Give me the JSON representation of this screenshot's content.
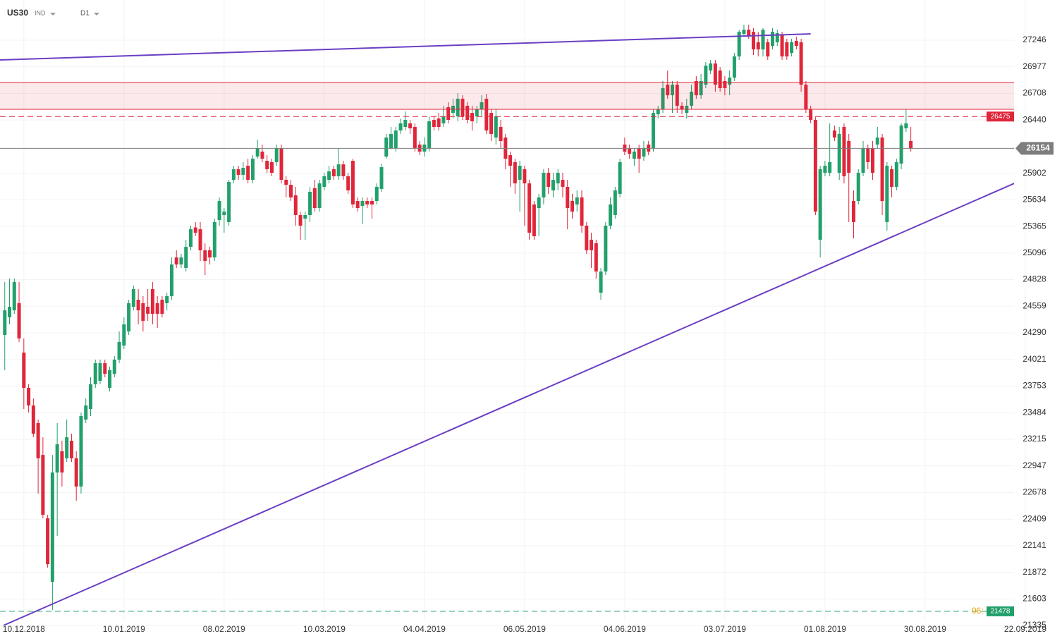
{
  "chart_data": {
    "type": "candlestick",
    "symbol": "US30",
    "market": "IND",
    "timeframe": "D1",
    "up_color": "#22a06b",
    "down_color": "#e0263a",
    "grid": true,
    "xlim": [
      -1,
      221.7
    ],
    "ylim": [
      21335,
      27652
    ],
    "yticks": [
      27246,
      26977,
      26708,
      26440,
      25902,
      25634,
      25365,
      25096,
      24828,
      24559,
      24290,
      24021,
      23753,
      23484,
      23215,
      22947,
      22678,
      22409,
      22141,
      21872,
      21603,
      21335
    ],
    "xticks": [
      {
        "value": 4,
        "label": "10.12.2018"
      },
      {
        "value": 25,
        "label": "10.01.2019"
      },
      {
        "value": 46,
        "label": "08.02.2019"
      },
      {
        "value": 67,
        "label": "10.03.2019"
      },
      {
        "value": 88,
        "label": "04.04.2019"
      },
      {
        "value": 109,
        "label": "06.05.2019"
      },
      {
        "value": 130,
        "label": "04.06.2019"
      },
      {
        "value": 151,
        "label": "03.07.2019"
      },
      {
        "value": 172,
        "label": "01.08.2019"
      },
      {
        "value": 193,
        "label": "30.08.2019"
      },
      {
        "value": 214,
        "label": "22.09.2019"
      }
    ],
    "open": [
      24269,
      24447,
      24518,
      24590,
      24091,
      23735,
      23557,
      23379,
      23058,
      22417,
      21776,
      22880,
      23094,
      23023,
      23201,
      23023,
      22738,
      23415,
      23521,
      23771,
      23806,
      23984,
      23735,
      23877,
      24020,
      24162,
      24305,
      24554,
      24625,
      24590,
      24554,
      24732,
      24590,
      24625,
      24590,
      24661,
      25052,
      24981,
      24946,
      25159,
      25355,
      25337,
      25124,
      25124,
      25052,
      25430,
      25480,
      25409,
      25836,
      25943,
      25886,
      25978,
      25836,
      26071,
      26121,
      26028,
      26014,
      26014,
      26156,
      25836,
      25786,
      25679,
      25480,
      25444,
      25480,
      25751,
      25551,
      25765,
      25836,
      25943,
      25872,
      25992,
      25872,
      26028,
      25622,
      25572,
      25622,
      25622,
      25622,
      25744,
      26071,
      26156,
      26156,
      26334,
      26370,
      26406,
      26370,
      26192,
      26121,
      26156,
      26441,
      26455,
      26406,
      26569,
      26512,
      26477,
      26655,
      26584,
      26512,
      26477,
      26548,
      26655,
      26512,
      26263,
      26370,
      26263,
      26085,
      26014,
      25836,
      25943,
      25800,
      25587,
      25551,
      25658,
      25907,
      25729,
      25800,
      25836,
      25765,
      25622,
      25587,
      25658,
      25373,
      25231,
      25195,
      24696,
      24910,
      25373,
      25480,
      25694,
      26192,
      26156,
      26049,
      26156,
      26071,
      26192,
      26156,
      26498,
      26548,
      26797,
      26690,
      26797,
      26584,
      26512,
      26584,
      26833,
      26690,
      26797,
      26940,
      27011,
      26940,
      26833,
      26797,
      26868,
      27082,
      27310,
      27352,
      27331,
      27225,
      27153,
      27225,
      27189,
      27225,
      27296,
      27225,
      27118,
      27239,
      27225,
      26797,
      26548,
      26441,
      25231,
      25907,
      25907,
      26334,
      25907,
      26370,
      26228,
      25622,
      25622,
      25907,
      26156,
      26156,
      26192,
      26263,
      25409,
      25943,
      25765,
      26000,
      26356,
      26228
    ],
    "high": [
      24803,
      24839,
      24839,
      24803,
      24234,
      23771,
      23628,
      23415,
      23236,
      22453,
      23058,
      23379,
      23201,
      23415,
      23272,
      23094,
      23486,
      23628,
      23842,
      24020,
      24020,
      24020,
      23949,
      24056,
      24305,
      24447,
      24625,
      24768,
      24732,
      24661,
      24732,
      24803,
      24661,
      24661,
      24696,
      25052,
      25124,
      25088,
      25231,
      25373,
      25409,
      25409,
      25195,
      25159,
      25444,
      25658,
      25551,
      25836,
      25978,
      25978,
      26014,
      26049,
      26085,
      26242,
      26192,
      26085,
      26049,
      26192,
      26192,
      25872,
      25836,
      25765,
      25515,
      25515,
      25765,
      25836,
      25836,
      25907,
      25978,
      25978,
      26156,
      26028,
      25907,
      26049,
      25658,
      25658,
      25658,
      25658,
      25800,
      26000,
      26299,
      26370,
      26370,
      26455,
      26526,
      26441,
      26406,
      26228,
      26263,
      26477,
      26477,
      26512,
      26584,
      26619,
      26655,
      26712,
      26690,
      26619,
      26584,
      26584,
      26690,
      26705,
      26548,
      26548,
      26441,
      26299,
      26121,
      26049,
      26028,
      25978,
      25836,
      25622,
      25694,
      25943,
      25957,
      25907,
      25943,
      25907,
      25836,
      25694,
      25729,
      25729,
      25409,
      25302,
      25231,
      24946,
      25409,
      25658,
      25765,
      26049,
      26263,
      26192,
      26156,
      26192,
      26228,
      26228,
      26548,
      26584,
      26833,
      26940,
      26833,
      26833,
      26619,
      26655,
      26797,
      26883,
      26904,
      27025,
      27047,
      27047,
      26975,
      26883,
      26940,
      27118,
      27352,
      27403,
      27403,
      27367,
      27331,
      27367,
      27260,
      27367,
      27352,
      27331,
      27260,
      27260,
      27282,
      27260,
      26833,
      26584,
      26477,
      25978,
      26028,
      26406,
      26384,
      26370,
      26406,
      26299,
      25729,
      25943,
      26228,
      26192,
      26228,
      26370,
      26299,
      26014,
      25978,
      26049,
      26406,
      26548,
      26370
    ],
    "low": [
      23913,
      24376,
      24483,
      24198,
      23521,
      23486,
      23236,
      22667,
      22417,
      21919,
      21491,
      22239,
      22738,
      22987,
      22987,
      22595,
      22667,
      23379,
      23450,
      23735,
      23771,
      23842,
      23699,
      23842,
      23984,
      24127,
      24269,
      24518,
      24376,
      24305,
      24412,
      24376,
      24340,
      24447,
      24518,
      24625,
      24946,
      24946,
      24910,
      25124,
      25266,
      25017,
      24874,
      24981,
      25017,
      25373,
      25302,
      25373,
      25800,
      25836,
      25836,
      25800,
      25800,
      26049,
      26014,
      25907,
      25872,
      25978,
      25800,
      25658,
      25622,
      25373,
      25231,
      25231,
      25409,
      25515,
      25515,
      25729,
      25800,
      25836,
      25836,
      25836,
      25694,
      25551,
      25515,
      25387,
      25551,
      25444,
      25587,
      25715,
      26049,
      26142,
      26121,
      26299,
      26334,
      26299,
      26121,
      26085,
      26071,
      26121,
      26334,
      26334,
      26370,
      26406,
      26455,
      26427,
      26441,
      26406,
      26334,
      26406,
      26477,
      26299,
      26228,
      26192,
      26156,
      25943,
      25765,
      25694,
      25515,
      25373,
      25231,
      25231,
      25266,
      25587,
      25694,
      25658,
      25729,
      25658,
      25337,
      25444,
      25515,
      25302,
      25088,
      24946,
      24839,
      24625,
      24874,
      25337,
      25444,
      25658,
      26085,
      26049,
      25978,
      25907,
      26028,
      26085,
      26121,
      26455,
      26512,
      26655,
      26512,
      26512,
      26498,
      26455,
      26548,
      26655,
      26655,
      26762,
      26904,
      26726,
      26726,
      26690,
      26690,
      26833,
      27047,
      27282,
      27260,
      27096,
      27082,
      27082,
      27047,
      27153,
      27189,
      27047,
      27047,
      27082,
      27153,
      26726,
      26512,
      26406,
      25480,
      25052,
      25872,
      25872,
      26228,
      25836,
      25800,
      25409,
      25245,
      25587,
      25872,
      25943,
      25836,
      26156,
      25480,
      25323,
      25658,
      25729,
      25943,
      26320,
      26121
    ],
    "close": [
      24518,
      24554,
      24803,
      24234,
      23735,
      23557,
      23272,
      23023,
      22453,
      21954,
      22880,
      23165,
      22880,
      23236,
      23023,
      22738,
      23450,
      23557,
      23771,
      23984,
      23984,
      23877,
      23913,
      24020,
      24198,
      24376,
      24590,
      24732,
      24518,
      24412,
      24483,
      24483,
      24483,
      24483,
      24661,
      24981,
      24981,
      25052,
      25159,
      25337,
      25302,
      25124,
      25017,
      25052,
      25409,
      25622,
      25515,
      25815,
      25943,
      25886,
      25957,
      25836,
      26049,
      26156,
      26049,
      25943,
      25907,
      26156,
      25836,
      25786,
      25658,
      25480,
      25373,
      25480,
      25715,
      25551,
      25800,
      25872,
      25921,
      25872,
      25992,
      25872,
      25729,
      25587,
      25551,
      25622,
      25587,
      25587,
      25765,
      25964,
      26263,
      26299,
      26334,
      26406,
      26441,
      26356,
      26156,
      26121,
      26192,
      26427,
      26370,
      26370,
      26477,
      26441,
      26584,
      26655,
      26477,
      26441,
      26427,
      26548,
      26619,
      26334,
      26299,
      26477,
      26228,
      26049,
      25978,
      25800,
      25978,
      25800,
      25302,
      25266,
      25658,
      25907,
      25765,
      25836,
      25907,
      25765,
      25551,
      25515,
      25658,
      25373,
      25124,
      25124,
      24910,
      24910,
      25373,
      25587,
      25729,
      26014,
      26121,
      26099,
      26121,
      26049,
      26156,
      26121,
      26512,
      26548,
      26762,
      26690,
      26797,
      26584,
      26548,
      26584,
      26726,
      26690,
      26833,
      26989,
      27011,
      26797,
      26762,
      26762,
      26868,
      27082,
      27331,
      27352,
      27296,
      27153,
      27153,
      27352,
      27082,
      27331,
      27317,
      27082,
      27082,
      27225,
      27189,
      26797,
      26548,
      26441,
      25515,
      25943,
      25978,
      26014,
      26263,
      26299,
      25872,
      25907,
      25409,
      25907,
      26156,
      26014,
      25907,
      26263,
      25622,
      25978,
      25765,
      26014,
      26384,
      26406,
      26156
    ],
    "zone": {
      "low": 26548,
      "high": 26819,
      "color": "#e0263a"
    },
    "levels": [
      {
        "value": 26475,
        "color": "#e0263a",
        "dashed": true,
        "label_position": "inside"
      },
      {
        "value": 26154,
        "color": "#7d7d7d",
        "dashed": false,
        "label_position": "axis"
      },
      {
        "value": 21478,
        "color": "#22a06b",
        "dashed": true,
        "label_position": "inside",
        "note": "06:"
      }
    ],
    "trendlines": [
      {
        "x": [
          -1,
          169
        ],
        "y": [
          27047,
          27310
        ],
        "color": "#6a3fc4"
      },
      {
        "x": [
          -0.3,
          211.7
        ],
        "y": [
          21335,
          25800
        ],
        "color": "#6a3fc4"
      }
    ]
  }
}
